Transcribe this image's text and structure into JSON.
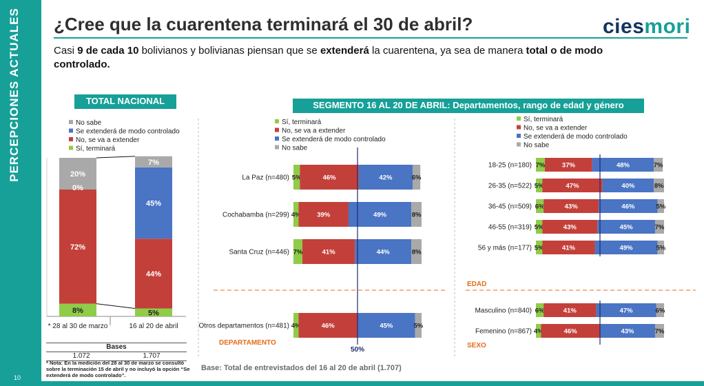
{
  "side_label": "PERCEPCIONES ACTUALES",
  "page_number": "10",
  "title": "¿Cree que la cuarentena terminará el 30 de abril?",
  "subtitle": {
    "p1": "Casi ",
    "b1": "9 de cada 10",
    "p2": " bolivianos y bolivianas piensan que se ",
    "b2": "extenderá",
    "p3": " la cuarentena, ya sea de manera ",
    "b3": "total o de modo controlado."
  },
  "logo": {
    "part1": "cies",
    "part2": "mori"
  },
  "banners": {
    "left": "TOTAL NACIONAL",
    "right": "SEGMENTO 16 AL 20 DE ABRIL: Departamentos, rango de edad y género"
  },
  "bases": {
    "header": "Bases",
    "values": [
      "1.072",
      "1.707"
    ]
  },
  "note": "* Nota: En la medición del 28 al 30 de marzo se consultó sobre la terminación 15 de abril y no incluyó la opción “Se extenderá de modo controlado”.",
  "base_text": "Base: Total de entrevistados del 16 al 20 de abril  (1.707)",
  "colors": {
    "si": "#8fcc48",
    "no": "#c3403a",
    "controlado": "#4a74c4",
    "nosabe": "#a9a9a9",
    "accent": "#16a098",
    "section": "#e46c19",
    "ref_line": "#1f2a6e"
  },
  "chart_data": [
    {
      "type": "bar",
      "stacked": true,
      "orientation": "vertical",
      "categories": [
        "* 28 al 30 de marzo",
        "16 al 20 de abril"
      ],
      "series": [
        {
          "name": "Sí, terminará",
          "values": [
            8,
            5
          ]
        },
        {
          "name": "No, se va a extender",
          "values": [
            72,
            44
          ]
        },
        {
          "name": "Se extenderá de modo controlado",
          "values": [
            0,
            45
          ]
        },
        {
          "name": "No sabe",
          "values": [
            20,
            7
          ]
        }
      ],
      "legend": [
        "No sabe",
        "Se extenderá de modo controlado",
        "No, se va a extender",
        "Sí, terminará"
      ],
      "legend_position": "top"
    },
    {
      "type": "bar",
      "stacked": true,
      "orientation": "horizontal",
      "section_label": "DEPARTAMENTO",
      "reference_line": {
        "value": 50,
        "label": "50%"
      },
      "categories": [
        "La Paz (n=480)",
        "Cochabamba (n=299)",
        "Santa Cruz (n=446)",
        "Otros departamentos (n=481)"
      ],
      "series": [
        {
          "name": "Sí, terminará",
          "values": [
            5,
            4,
            7,
            4
          ]
        },
        {
          "name": "No, se va a extender",
          "values": [
            46,
            39,
            41,
            46
          ]
        },
        {
          "name": "Se extenderá de modo controlado",
          "values": [
            42,
            49,
            44,
            45
          ]
        },
        {
          "name": "No sabe",
          "values": [
            6,
            8,
            8,
            5
          ]
        }
      ],
      "legend": [
        "Sí, terminará",
        "No, se va a extender",
        "Se extenderá de modo controlado",
        "No sabe"
      ],
      "legend_position": "top"
    },
    {
      "type": "bar",
      "stacked": true,
      "orientation": "horizontal",
      "sections": [
        {
          "label": "EDAD",
          "categories": [
            "18-25 (n=180)",
            "26-35 (n=522)",
            "36-45 (n=509)",
            "46-55 (n=319)",
            "56 y más (n=177)"
          ]
        },
        {
          "label": "SEXO",
          "categories": [
            "Masculino (n=840)",
            "Femenino (n=867)"
          ]
        }
      ],
      "categories": [
        "18-25 (n=180)",
        "26-35 (n=522)",
        "36-45 (n=509)",
        "46-55 (n=319)",
        "56 y más (n=177)",
        "Masculino (n=840)",
        "Femenino (n=867)"
      ],
      "series": [
        {
          "name": "Sí, terminará",
          "values": [
            7,
            5,
            6,
            5,
            5,
            6,
            4
          ]
        },
        {
          "name": "No, se va a extender",
          "values": [
            37,
            47,
            43,
            43,
            41,
            41,
            46
          ]
        },
        {
          "name": "Se extenderá de modo controlado",
          "values": [
            48,
            40,
            46,
            45,
            49,
            47,
            43
          ]
        },
        {
          "name": "No sabe",
          "values": [
            7,
            8,
            5,
            7,
            5,
            6,
            7
          ]
        }
      ],
      "legend": [
        "Sí, terminará",
        "No, se va a extender",
        "Se extenderá de modo controlado",
        "No sabe"
      ],
      "legend_position": "top"
    }
  ]
}
